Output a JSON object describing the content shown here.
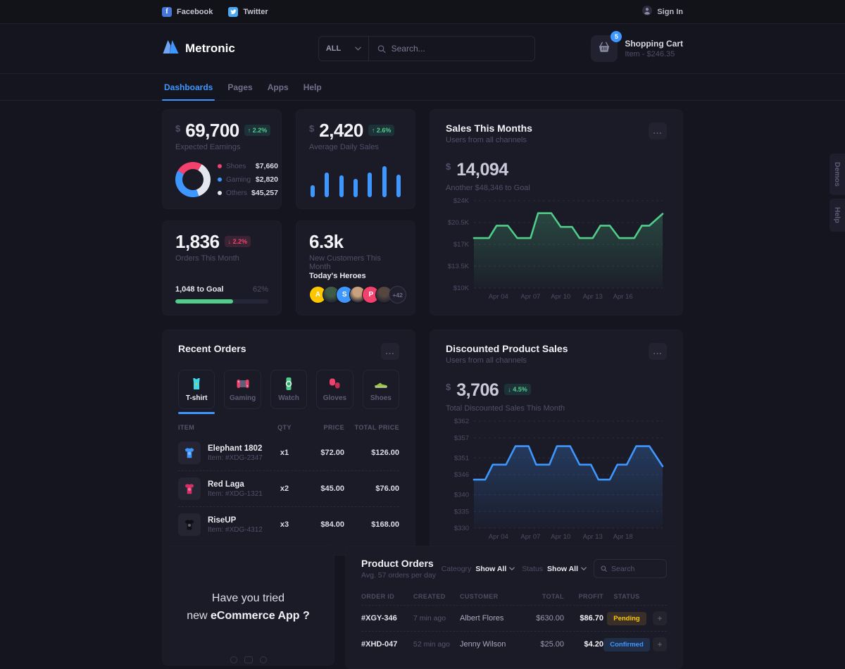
{
  "icons": {
    "ellipsis": "..."
  },
  "topbar": {
    "facebook": "Facebook",
    "twitter": "Twitter",
    "signin": "Sign In"
  },
  "header": {
    "brand": "Metronic",
    "category": "ALL",
    "search_placeholder": "Search...",
    "cart_title": "Shopping Cart",
    "cart_subtitle": "Item - $246.35",
    "cart_badge": "5"
  },
  "nav": {
    "items": [
      {
        "label": "Dashboards",
        "active": true
      },
      {
        "label": "Pages",
        "active": false
      },
      {
        "label": "Apps",
        "active": false
      },
      {
        "label": "Help",
        "active": false
      }
    ]
  },
  "side_tabs": {
    "demos": "Demos",
    "help": "Help"
  },
  "earnings": {
    "currency": "$",
    "value": "69,700",
    "delta_badge": {
      "arrow": "↑",
      "text": "2.2%",
      "style": "green"
    },
    "label": "Expected Earnings",
    "donut": {
      "start_deg": 300,
      "slices": [
        {
          "color": "#f1416c",
          "deg": 90
        },
        {
          "color": "#e4e6ef",
          "deg": 130
        },
        {
          "color": "#3e97ff",
          "deg": 140
        }
      ]
    },
    "legend": [
      {
        "name": "Shoes",
        "value": "$7,660",
        "color": "#f1416c"
      },
      {
        "name": "Gaming",
        "value": "$2,820",
        "color": "#3e97ff"
      },
      {
        "name": "Others",
        "value": "$45,257",
        "color": "#e4e6ef"
      }
    ]
  },
  "daily_sales": {
    "currency": "$",
    "value": "2,420",
    "delta_badge": {
      "arrow": "↑",
      "text": "2.6%",
      "style": "green"
    },
    "label": "Average Daily Sales"
  },
  "orders": {
    "value": "1,836",
    "delta_badge": {
      "arrow": "↓",
      "text": "2.2%",
      "style": "red"
    },
    "label": "Orders This Month",
    "goal": "1,048 to Goal",
    "percent_label": "62%",
    "percent": 62
  },
  "customers": {
    "value": "6.3k",
    "label": "New Customers This Month",
    "heroes_title": "Today's Heroes",
    "avatars": [
      {
        "type": "initial",
        "text": "A",
        "bg": "#ffc700"
      },
      {
        "type": "photo",
        "bg": "#3f5d46"
      },
      {
        "type": "initial",
        "text": "S",
        "bg": "#3e97ff"
      },
      {
        "type": "photo",
        "bg": "#c8a27d"
      },
      {
        "type": "initial",
        "text": "P",
        "bg": "#f1416c"
      },
      {
        "type": "photo",
        "bg": "#55463f"
      },
      {
        "type": "more",
        "text": "+42"
      }
    ]
  },
  "sales_month": {
    "title": "Sales This Months",
    "subtitle": "Users from all channels",
    "currency": "$",
    "value": "14,094",
    "goal": "Another $48,346 to Goal"
  },
  "discounted": {
    "title": "Discounted Product Sales",
    "subtitle": "Users from all channels",
    "currency": "$",
    "value": "3,706",
    "delta_badge": {
      "arrow": "↓",
      "text": "4.5%",
      "style": "green"
    },
    "label": "Total Discounted Sales This Month"
  },
  "recent_orders": {
    "title": "Recent Orders",
    "tabs": [
      {
        "label": "T-shirt",
        "icon": "tshirt",
        "active": true
      },
      {
        "label": "Gaming",
        "icon": "gaming",
        "active": false
      },
      {
        "label": "Watch",
        "icon": "watch",
        "active": false
      },
      {
        "label": "Gloves",
        "icon": "gloves",
        "active": false
      },
      {
        "label": "Shoes",
        "icon": "shoes",
        "active": false
      }
    ],
    "headers": [
      "ITEM",
      "QTY",
      "PRICE",
      "TOTAL PRICE"
    ],
    "rows": [
      {
        "name": "Elephant 1802",
        "item": "Item: #XDG-2347",
        "qty": "x1",
        "price": "$72.00",
        "total": "$126.00",
        "thumb": "#3e97ff"
      },
      {
        "name": "Red Laga",
        "item": "Item: #XDG-1321",
        "qty": "x2",
        "price": "$45.00",
        "total": "$76.00",
        "thumb": "#d63066"
      },
      {
        "name": "RiseUP",
        "item": "Item: #XDG-4312",
        "qty": "x3",
        "price": "$84.00",
        "total": "$168.00",
        "thumb": "#0d0e14"
      }
    ]
  },
  "promo": {
    "line1": "Have you tried",
    "line2": "new ",
    "line2_bold": "eCommerce App ?"
  },
  "product_orders": {
    "title": "Product Orders",
    "subtitle": "Avg. 57 orders per day",
    "category_label": "Cateogry",
    "category_value": "Show All",
    "status_label": "Status",
    "status_value": "Show All",
    "search_placeholder": "Search",
    "headers": [
      "ORDER ID",
      "CREATED",
      "CUSTOMER",
      "TOTAL",
      "PROFIT",
      "STATUS",
      ""
    ],
    "rows": [
      {
        "id": "#XGY-346",
        "created": "7 min ago",
        "customer": "Albert Flores",
        "total": "$630.00",
        "profit": "$86.70",
        "status": "Pending",
        "status_color": "#ffc700",
        "status_bg": "#392f28"
      },
      {
        "id": "#XHD-047",
        "created": "52 min ago",
        "customer": "Jenny Wilson",
        "total": "$25.00",
        "profit": "$4.20",
        "status": "Confirmed",
        "status_color": "#3e97ff",
        "status_bg": "#212e48"
      }
    ]
  },
  "chart_data": [
    {
      "type": "bar",
      "name": "average-daily-sales-bars",
      "color": "#3e97ff",
      "values": [
        38,
        80,
        70,
        59,
        80,
        100,
        73
      ]
    },
    {
      "type": "line",
      "name": "sales-this-months-chart",
      "title": "Sales This Months",
      "color": "#50cd89",
      "ylim": [
        10,
        24
      ],
      "yticks": [
        {
          "label": "$24K",
          "v": 24
        },
        {
          "label": "$20.5K",
          "v": 20.5
        },
        {
          "label": "$17K",
          "v": 17
        },
        {
          "label": "$13.5K",
          "v": 13.5
        },
        {
          "label": "$10K",
          "v": 10
        }
      ],
      "xticks": [
        "Apr 04",
        "Apr 07",
        "Apr 10",
        "Apr 13",
        "Apr 16"
      ],
      "xpos": [
        0.13,
        0.3,
        0.46,
        0.63,
        0.79
      ],
      "points": [
        [
          0,
          18
        ],
        [
          8,
          18
        ],
        [
          12,
          20
        ],
        [
          18,
          20
        ],
        [
          23,
          18
        ],
        [
          30,
          18
        ],
        [
          34,
          22
        ],
        [
          41,
          22
        ],
        [
          46,
          19.8
        ],
        [
          52,
          19.8
        ],
        [
          56,
          18
        ],
        [
          63,
          18
        ],
        [
          67,
          20
        ],
        [
          72,
          20
        ],
        [
          77,
          18
        ],
        [
          85,
          18
        ],
        [
          89,
          20
        ],
        [
          93,
          20
        ],
        [
          100,
          21.9
        ]
      ]
    },
    {
      "type": "line",
      "name": "discounted-product-sales-chart",
      "title": "Discounted Product Sales",
      "color": "#3e97ff",
      "ylim": [
        330,
        362
      ],
      "yticks": [
        {
          "label": "$362",
          "v": 362
        },
        {
          "label": "$357",
          "v": 357
        },
        {
          "label": "$351",
          "v": 351
        },
        {
          "label": "$346",
          "v": 346
        },
        {
          "label": "$340",
          "v": 340
        },
        {
          "label": "$335",
          "v": 335
        },
        {
          "label": "$330",
          "v": 330
        }
      ],
      "xticks": [
        "Apr 04",
        "Apr 07",
        "Apr 10",
        "Apr 13",
        "Apr 18"
      ],
      "xpos": [
        0.13,
        0.3,
        0.46,
        0.63,
        0.79
      ],
      "points": [
        [
          0,
          344.5
        ],
        [
          6,
          344.5
        ],
        [
          10,
          349
        ],
        [
          17,
          349
        ],
        [
          22,
          354.5
        ],
        [
          29,
          354.5
        ],
        [
          33,
          349
        ],
        [
          40,
          349
        ],
        [
          44,
          354.5
        ],
        [
          51,
          354.5
        ],
        [
          56,
          349
        ],
        [
          62,
          349
        ],
        [
          66,
          344.5
        ],
        [
          72,
          344.5
        ],
        [
          76,
          349
        ],
        [
          81,
          349
        ],
        [
          86,
          354.5
        ],
        [
          93,
          354.5
        ],
        [
          100,
          348.5
        ]
      ]
    }
  ]
}
